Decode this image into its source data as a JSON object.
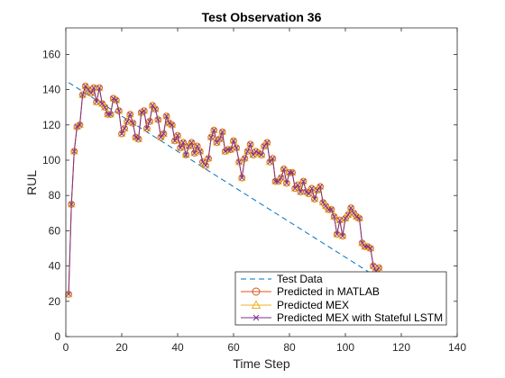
{
  "chart_data": {
    "type": "line",
    "title": "Test Observation 36",
    "xlabel": "Time Step",
    "ylabel": "RUL",
    "xlim": [
      0,
      140
    ],
    "ylim": [
      0,
      175
    ],
    "xticks": [
      0,
      20,
      40,
      60,
      80,
      100,
      120,
      140
    ],
    "yticks": [
      0,
      20,
      40,
      60,
      80,
      100,
      120,
      140,
      160
    ],
    "grid": false,
    "legend_position": "bottom-right",
    "x": [
      1,
      2,
      3,
      4,
      5,
      6,
      7,
      8,
      9,
      10,
      11,
      12,
      13,
      14,
      15,
      16,
      17,
      18,
      19,
      20,
      21,
      22,
      23,
      24,
      25,
      26,
      27,
      28,
      29,
      30,
      31,
      32,
      33,
      34,
      35,
      36,
      37,
      38,
      39,
      40,
      41,
      42,
      43,
      44,
      45,
      46,
      47,
      48,
      49,
      50,
      51,
      52,
      53,
      54,
      55,
      56,
      57,
      58,
      59,
      60,
      61,
      62,
      63,
      64,
      65,
      66,
      67,
      68,
      69,
      70,
      71,
      72,
      73,
      74,
      75,
      76,
      77,
      78,
      79,
      80,
      81,
      82,
      83,
      84,
      85,
      86,
      87,
      88,
      89,
      90,
      91,
      92,
      93,
      94,
      95,
      96,
      97,
      98,
      99,
      100,
      101,
      102,
      103,
      104,
      105,
      106,
      107,
      108,
      109,
      110,
      111,
      112
    ],
    "series": [
      {
        "name": "Test Data",
        "style": "dashed",
        "color": "#0072BD",
        "x": [
          1,
          112
        ],
        "values": [
          144,
          33
        ]
      },
      {
        "name": "Predicted in MATLAB",
        "style": "solid-circle",
        "color": "#D95319",
        "values": [
          24,
          75,
          105,
          119,
          120,
          137,
          142,
          140,
          138,
          141,
          133,
          141,
          132,
          130,
          126,
          126,
          135,
          134,
          128,
          115,
          118,
          122,
          126,
          121,
          113,
          112,
          127,
          128,
          118,
          122,
          131,
          129,
          123,
          113,
          115,
          125,
          121,
          120,
          111,
          114,
          107,
          110,
          103,
          108,
          110,
          104,
          108,
          105,
          99,
          97,
          101,
          113,
          117,
          110,
          112,
          116,
          105,
          106,
          106,
          111,
          107,
          99,
          90,
          101,
          105,
          109,
          103,
          105,
          104,
          103,
          108,
          110,
          99,
          101,
          88,
          88,
          90,
          95,
          87,
          93,
          93,
          84,
          86,
          82,
          88,
          82,
          81,
          84,
          78,
          83,
          85,
          76,
          74,
          72,
          72,
          68,
          58,
          66,
          57,
          67,
          69,
          73,
          70,
          68,
          67,
          53,
          51,
          51,
          50,
          40,
          37,
          39
        ]
      },
      {
        "name": "Predicted MEX",
        "style": "solid-triangle",
        "color": "#EDB120",
        "values": [
          24,
          75,
          105,
          119,
          120,
          137,
          142,
          140,
          138,
          141,
          133,
          141,
          132,
          130,
          126,
          126,
          135,
          134,
          128,
          115,
          118,
          122,
          126,
          121,
          113,
          112,
          127,
          128,
          118,
          122,
          131,
          129,
          123,
          113,
          115,
          125,
          121,
          120,
          111,
          114,
          107,
          110,
          103,
          108,
          110,
          104,
          108,
          105,
          99,
          97,
          101,
          113,
          117,
          110,
          112,
          116,
          105,
          106,
          106,
          111,
          107,
          99,
          90,
          101,
          105,
          109,
          103,
          105,
          104,
          103,
          108,
          110,
          99,
          101,
          88,
          88,
          90,
          95,
          87,
          93,
          93,
          84,
          86,
          82,
          88,
          82,
          81,
          84,
          78,
          83,
          85,
          76,
          74,
          72,
          72,
          68,
          58,
          66,
          57,
          67,
          69,
          73,
          70,
          68,
          67,
          53,
          51,
          51,
          50,
          40,
          37,
          39
        ]
      },
      {
        "name": "Predicted MEX with Stateful LSTM",
        "style": "solid-x",
        "color": "#7E2F8E",
        "values": [
          24,
          75,
          105,
          119,
          120,
          137,
          142,
          140,
          138,
          141,
          133,
          141,
          132,
          130,
          126,
          126,
          135,
          134,
          128,
          115,
          118,
          122,
          126,
          121,
          113,
          112,
          127,
          128,
          118,
          122,
          131,
          129,
          123,
          113,
          115,
          125,
          121,
          120,
          111,
          114,
          107,
          110,
          103,
          108,
          110,
          104,
          108,
          105,
          99,
          97,
          101,
          113,
          117,
          110,
          112,
          116,
          105,
          106,
          106,
          111,
          107,
          99,
          90,
          101,
          105,
          109,
          103,
          105,
          104,
          103,
          108,
          110,
          99,
          101,
          88,
          88,
          90,
          95,
          87,
          93,
          93,
          84,
          86,
          82,
          88,
          82,
          81,
          84,
          78,
          83,
          85,
          76,
          74,
          72,
          72,
          68,
          58,
          66,
          57,
          67,
          69,
          73,
          70,
          68,
          67,
          53,
          51,
          51,
          50,
          40,
          37,
          39
        ]
      }
    ]
  }
}
